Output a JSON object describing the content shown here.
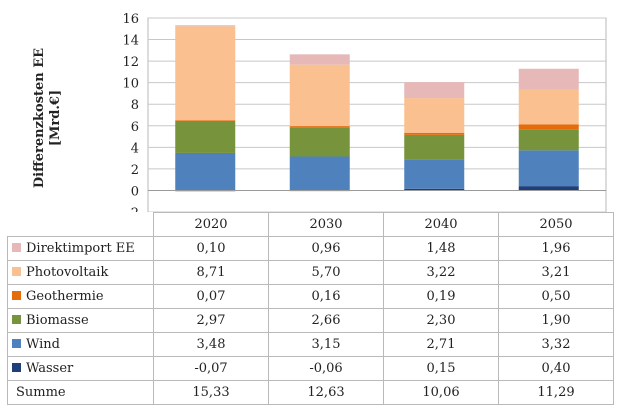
{
  "chart_data": {
    "type": "bar",
    "stacked": true,
    "ylabel_lines": [
      "Differenzkosten EE",
      "[Mrd.€]"
    ],
    "ylim": [
      -2,
      16
    ],
    "yticks": [
      -2,
      0,
      2,
      4,
      6,
      8,
      10,
      12,
      14,
      16
    ],
    "grid": "horizontal",
    "categories": [
      "2020",
      "2030",
      "2040",
      "2050"
    ],
    "series": [
      {
        "name": "Wasser",
        "color": "#1f3f7a",
        "values": [
          -0.07,
          -0.06,
          0.15,
          0.4
        ],
        "display": [
          "-0,07",
          "-0,06",
          "0,15",
          "0,40"
        ]
      },
      {
        "name": "Wind",
        "color": "#4f81bd",
        "values": [
          3.48,
          3.15,
          2.71,
          3.32
        ],
        "display": [
          "3,48",
          "3,15",
          "2,71",
          "3,32"
        ]
      },
      {
        "name": "Biomasse",
        "color": "#77933c",
        "values": [
          2.97,
          2.66,
          2.3,
          1.9
        ],
        "display": [
          "2,97",
          "2,66",
          "2,30",
          "1,90"
        ]
      },
      {
        "name": "Geothermie",
        "color": "#e46c0a",
        "values": [
          0.07,
          0.16,
          0.19,
          0.5
        ],
        "display": [
          "0,07",
          "0,16",
          "0,19",
          "0,50"
        ]
      },
      {
        "name": "Photovoltaik",
        "color": "#fac090",
        "values": [
          8.71,
          5.7,
          3.22,
          3.21
        ],
        "display": [
          "8,71",
          "5,70",
          "3,22",
          "3,21"
        ]
      },
      {
        "name": "Direktimport EE",
        "color": "#e6b9b8",
        "values": [
          0.1,
          0.96,
          1.48,
          1.96
        ],
        "display": [
          "0,10",
          "0,96",
          "1,48",
          "1,96"
        ]
      }
    ],
    "sum_row": {
      "name": "Summe",
      "values": [
        15.33,
        12.63,
        10.06,
        11.29
      ],
      "display": [
        "15,33",
        "12,63",
        "10,06",
        "11,29"
      ]
    },
    "legend_order": [
      "Direktimport EE",
      "Photovoltaik",
      "Geothermie",
      "Biomasse",
      "Wind",
      "Wasser"
    ]
  }
}
